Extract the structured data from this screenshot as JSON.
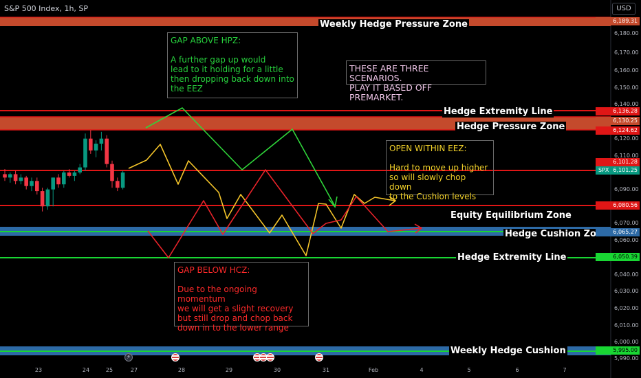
{
  "header": {
    "symbol": "S&P 500 Index, 1h, SP",
    "currency_button": "USD"
  },
  "zones": [
    {
      "label": "Weekly Hedge Pressure Zone",
      "price_tag": "6,189.31",
      "color": "#c44a2c"
    },
    {
      "label": "Hedge Extremity Line",
      "price_tag": "6,136.28",
      "color": "#e01616"
    },
    {
      "label": "Hedge Pressure Zone",
      "price_tags": [
        "6,130.25",
        "6,124.62"
      ],
      "color": "#c44a2c"
    },
    {
      "label": "",
      "price_tag": "6,101.28",
      "color": "#e01616"
    },
    {
      "label": "Equity Equilibrium Zone",
      "price_tag": "6,080.56",
      "color": "#e01616"
    },
    {
      "label": "Hedge Cushion Zone",
      "price_tag": "6,065.27",
      "color": "#2d6aa6"
    },
    {
      "label": "Hedge Extremity Line",
      "price_tag": "6,050.39",
      "color": "#19d633"
    },
    {
      "label": "Weekly Hedge Cushion",
      "price_tag": "5,995.00",
      "color": "#2d6aa6"
    }
  ],
  "last_price": {
    "symbol": "SPX",
    "value": "6,101.25",
    "color": "#089981"
  },
  "annotations": {
    "gap_above": "GAP ABOVE HPZ:\n\nA further gap up would\nlead to it holding for a little\nthen dropping back down into\nthe EEZ",
    "scenarios": "THESE ARE THREE SCENARIOS.\nPLAY IT BASED OFF PREMARKET.",
    "open_within": "OPEN WITHIN EEZ:\n\nHard to move up higher\nso will slowly chop down\nto the Cushion levels",
    "gap_below": "GAP BELOW HCZ:\n\nDue to the ongoing momentum\nwe will get a slight recovery\nbut still drop and chop back\ndown in to the lower range"
  },
  "y_axis": [
    "6,180.00",
    "6,170.00",
    "6,160.00",
    "6,150.00",
    "6,140.00",
    "6,120.00",
    "6,110.00",
    "6,090.00",
    "6,070.00",
    "6,060.00",
    "6,040.00",
    "6,030.00",
    "6,020.00",
    "6,010.00",
    "6,000.00",
    "5,990.00"
  ],
  "x_axis": [
    "23",
    "24",
    "25",
    "27",
    "28",
    "29",
    "30",
    "31",
    "Feb",
    "4",
    "5",
    "6",
    "7"
  ],
  "colors": {
    "up": "#089981",
    "down": "#f23645",
    "green_path": "#2fd63a",
    "yellow_path": "#f5c52a",
    "red_path": "#e8232a"
  },
  "candles": [
    {
      "o": 6098,
      "h": 6101,
      "l": 6094,
      "c": 6096
    },
    {
      "o": 6096,
      "h": 6099,
      "l": 6093,
      "c": 6098
    },
    {
      "o": 6098,
      "h": 6100,
      "l": 6092,
      "c": 6094
    },
    {
      "o": 6094,
      "h": 6098,
      "l": 6092,
      "c": 6096
    },
    {
      "o": 6096,
      "h": 6097,
      "l": 6089,
      "c": 6091
    },
    {
      "o": 6091,
      "h": 6096,
      "l": 6088,
      "c": 6094
    },
    {
      "o": 6094,
      "h": 6096,
      "l": 6086,
      "c": 6088
    },
    {
      "o": 6088,
      "h": 6090,
      "l": 6076,
      "c": 6079
    },
    {
      "o": 6079,
      "h": 6090,
      "l": 6077,
      "c": 6089
    },
    {
      "o": 6089,
      "h": 6096,
      "l": 6079,
      "c": 6096
    },
    {
      "o": 6096,
      "h": 6098,
      "l": 6090,
      "c": 6092
    },
    {
      "o": 6092,
      "h": 6100,
      "l": 6090,
      "c": 6099
    },
    {
      "o": 6099,
      "h": 6101,
      "l": 6096,
      "c": 6097
    },
    {
      "o": 6097,
      "h": 6100,
      "l": 6094,
      "c": 6099
    },
    {
      "o": 6099,
      "h": 6104,
      "l": 6098,
      "c": 6102
    },
    {
      "o": 6102,
      "h": 6122,
      "l": 6100,
      "c": 6119
    },
    {
      "o": 6119,
      "h": 6124,
      "l": 6110,
      "c": 6112
    },
    {
      "o": 6112,
      "h": 6118,
      "l": 6108,
      "c": 6116
    },
    {
      "o": 6116,
      "h": 6123,
      "l": 6112,
      "c": 6119
    },
    {
      "o": 6119,
      "h": 6121,
      "l": 6102,
      "c": 6104
    },
    {
      "o": 6104,
      "h": 6106,
      "l": 6090,
      "c": 6094
    },
    {
      "o": 6094,
      "h": 6096,
      "l": 6088,
      "c": 6090
    },
    {
      "o": 6090,
      "h": 6100,
      "l": 6089,
      "c": 6099
    }
  ],
  "event_icons": [
    "lightning-icon",
    "us-flag-icon",
    "us-flag-icon",
    "us-flag-icon",
    "us-flag-icon",
    "us-flag-icon"
  ]
}
